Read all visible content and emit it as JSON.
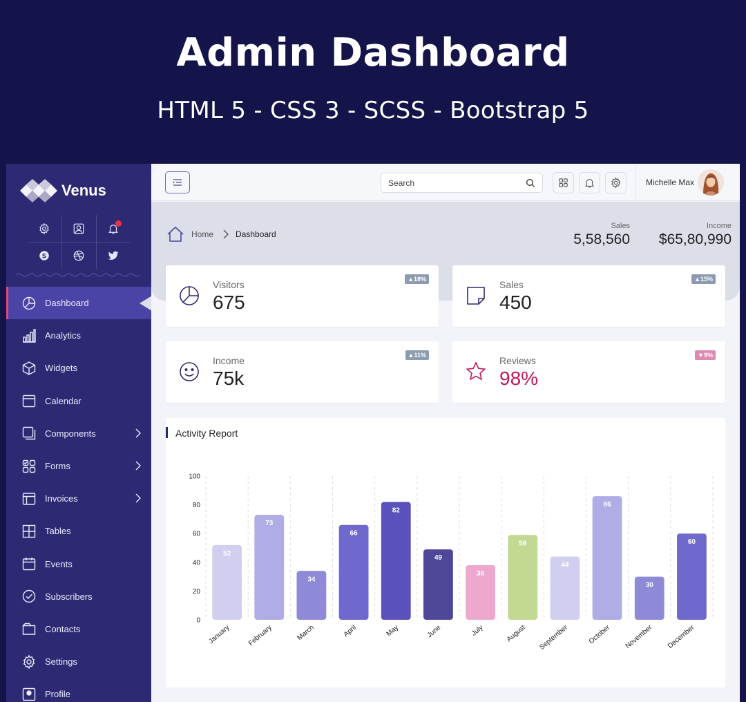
{
  "promo": {
    "title": "Admin Dashboard",
    "subtitle": "HTML 5 - CSS 3 - SCSS - Bootstrap 5"
  },
  "brand": {
    "name": "Venus"
  },
  "quick_icons": [
    "settings-icon",
    "user-icon",
    "bell-icon",
    "skype-icon",
    "dribbble-icon",
    "twitter-icon"
  ],
  "sidebar": {
    "items": [
      {
        "label": "Dashboard",
        "icon": "pie-chart-icon",
        "active": true,
        "has_children": false
      },
      {
        "label": "Analytics",
        "icon": "bar-chart-icon",
        "active": false,
        "has_children": false
      },
      {
        "label": "Widgets",
        "icon": "cube-icon",
        "active": false,
        "has_children": false
      },
      {
        "label": "Calendar",
        "icon": "calendar-icon",
        "active": false,
        "has_children": false
      },
      {
        "label": "Components",
        "icon": "components-icon",
        "active": false,
        "has_children": true
      },
      {
        "label": "Forms",
        "icon": "forms-icon",
        "active": false,
        "has_children": true
      },
      {
        "label": "Invoices",
        "icon": "invoice-icon",
        "active": false,
        "has_children": true
      },
      {
        "label": "Tables",
        "icon": "table-icon",
        "active": false,
        "has_children": false
      },
      {
        "label": "Events",
        "icon": "events-icon",
        "active": false,
        "has_children": false
      },
      {
        "label": "Subscribers",
        "icon": "check-circle-icon",
        "active": false,
        "has_children": false
      },
      {
        "label": "Contacts",
        "icon": "folder-icon",
        "active": false,
        "has_children": false
      },
      {
        "label": "Settings",
        "icon": "gear-icon",
        "active": false,
        "has_children": false
      },
      {
        "label": "Profile",
        "icon": "profile-icon",
        "active": false,
        "has_children": false
      }
    ]
  },
  "topbar": {
    "search_placeholder": "Search",
    "user_name": "Michelle Max"
  },
  "breadcrumb": {
    "home": "Home",
    "current": "Dashboard"
  },
  "summary": {
    "sales_label": "Sales",
    "sales_value": "5,58,560",
    "income_label": "Income",
    "income_value": "$65,80,990"
  },
  "cards": [
    {
      "label": "Visitors",
      "value": "675",
      "badge": "18%",
      "trend": "up",
      "icon": "pie-chart-icon",
      "color": "#222222"
    },
    {
      "label": "Sales",
      "value": "450",
      "badge": "15%",
      "trend": "up",
      "icon": "sticky-note-icon",
      "color": "#222222"
    },
    {
      "label": "Income",
      "value": "75k",
      "badge": "11%",
      "trend": "up",
      "icon": "smile-icon",
      "color": "#222222"
    },
    {
      "label": "Reviews",
      "value": "98%",
      "badge": "9%",
      "trend": "down",
      "icon": "star-icon",
      "color": "#c2185b"
    }
  ],
  "activity": {
    "title": "Activity Report"
  },
  "colors": {
    "accent": "#2d2a73",
    "active_nav": "#4a44a6",
    "active_marker": "#e8447e"
  },
  "chart_data": {
    "type": "bar",
    "categories": [
      "January",
      "February",
      "March",
      "April",
      "May",
      "June",
      "July",
      "August",
      "September",
      "October",
      "November",
      "December"
    ],
    "values": [
      52,
      73,
      34,
      66,
      82,
      49,
      38,
      59,
      44,
      86,
      30,
      60
    ],
    "colors": [
      "#d0cff0",
      "#b0ace6",
      "#8f8ad8",
      "#6f68cd",
      "#5a51bd",
      "#4f4899",
      "#eda9cd",
      "#c2d994",
      "#d1cff0",
      "#b0ace6",
      "#8f8ad8",
      "#6f68cd"
    ],
    "ylim": [
      0,
      100
    ],
    "yticks": [
      0,
      20,
      40,
      60,
      80,
      100
    ],
    "data_labels": true,
    "grid": "vertical-dashed"
  }
}
